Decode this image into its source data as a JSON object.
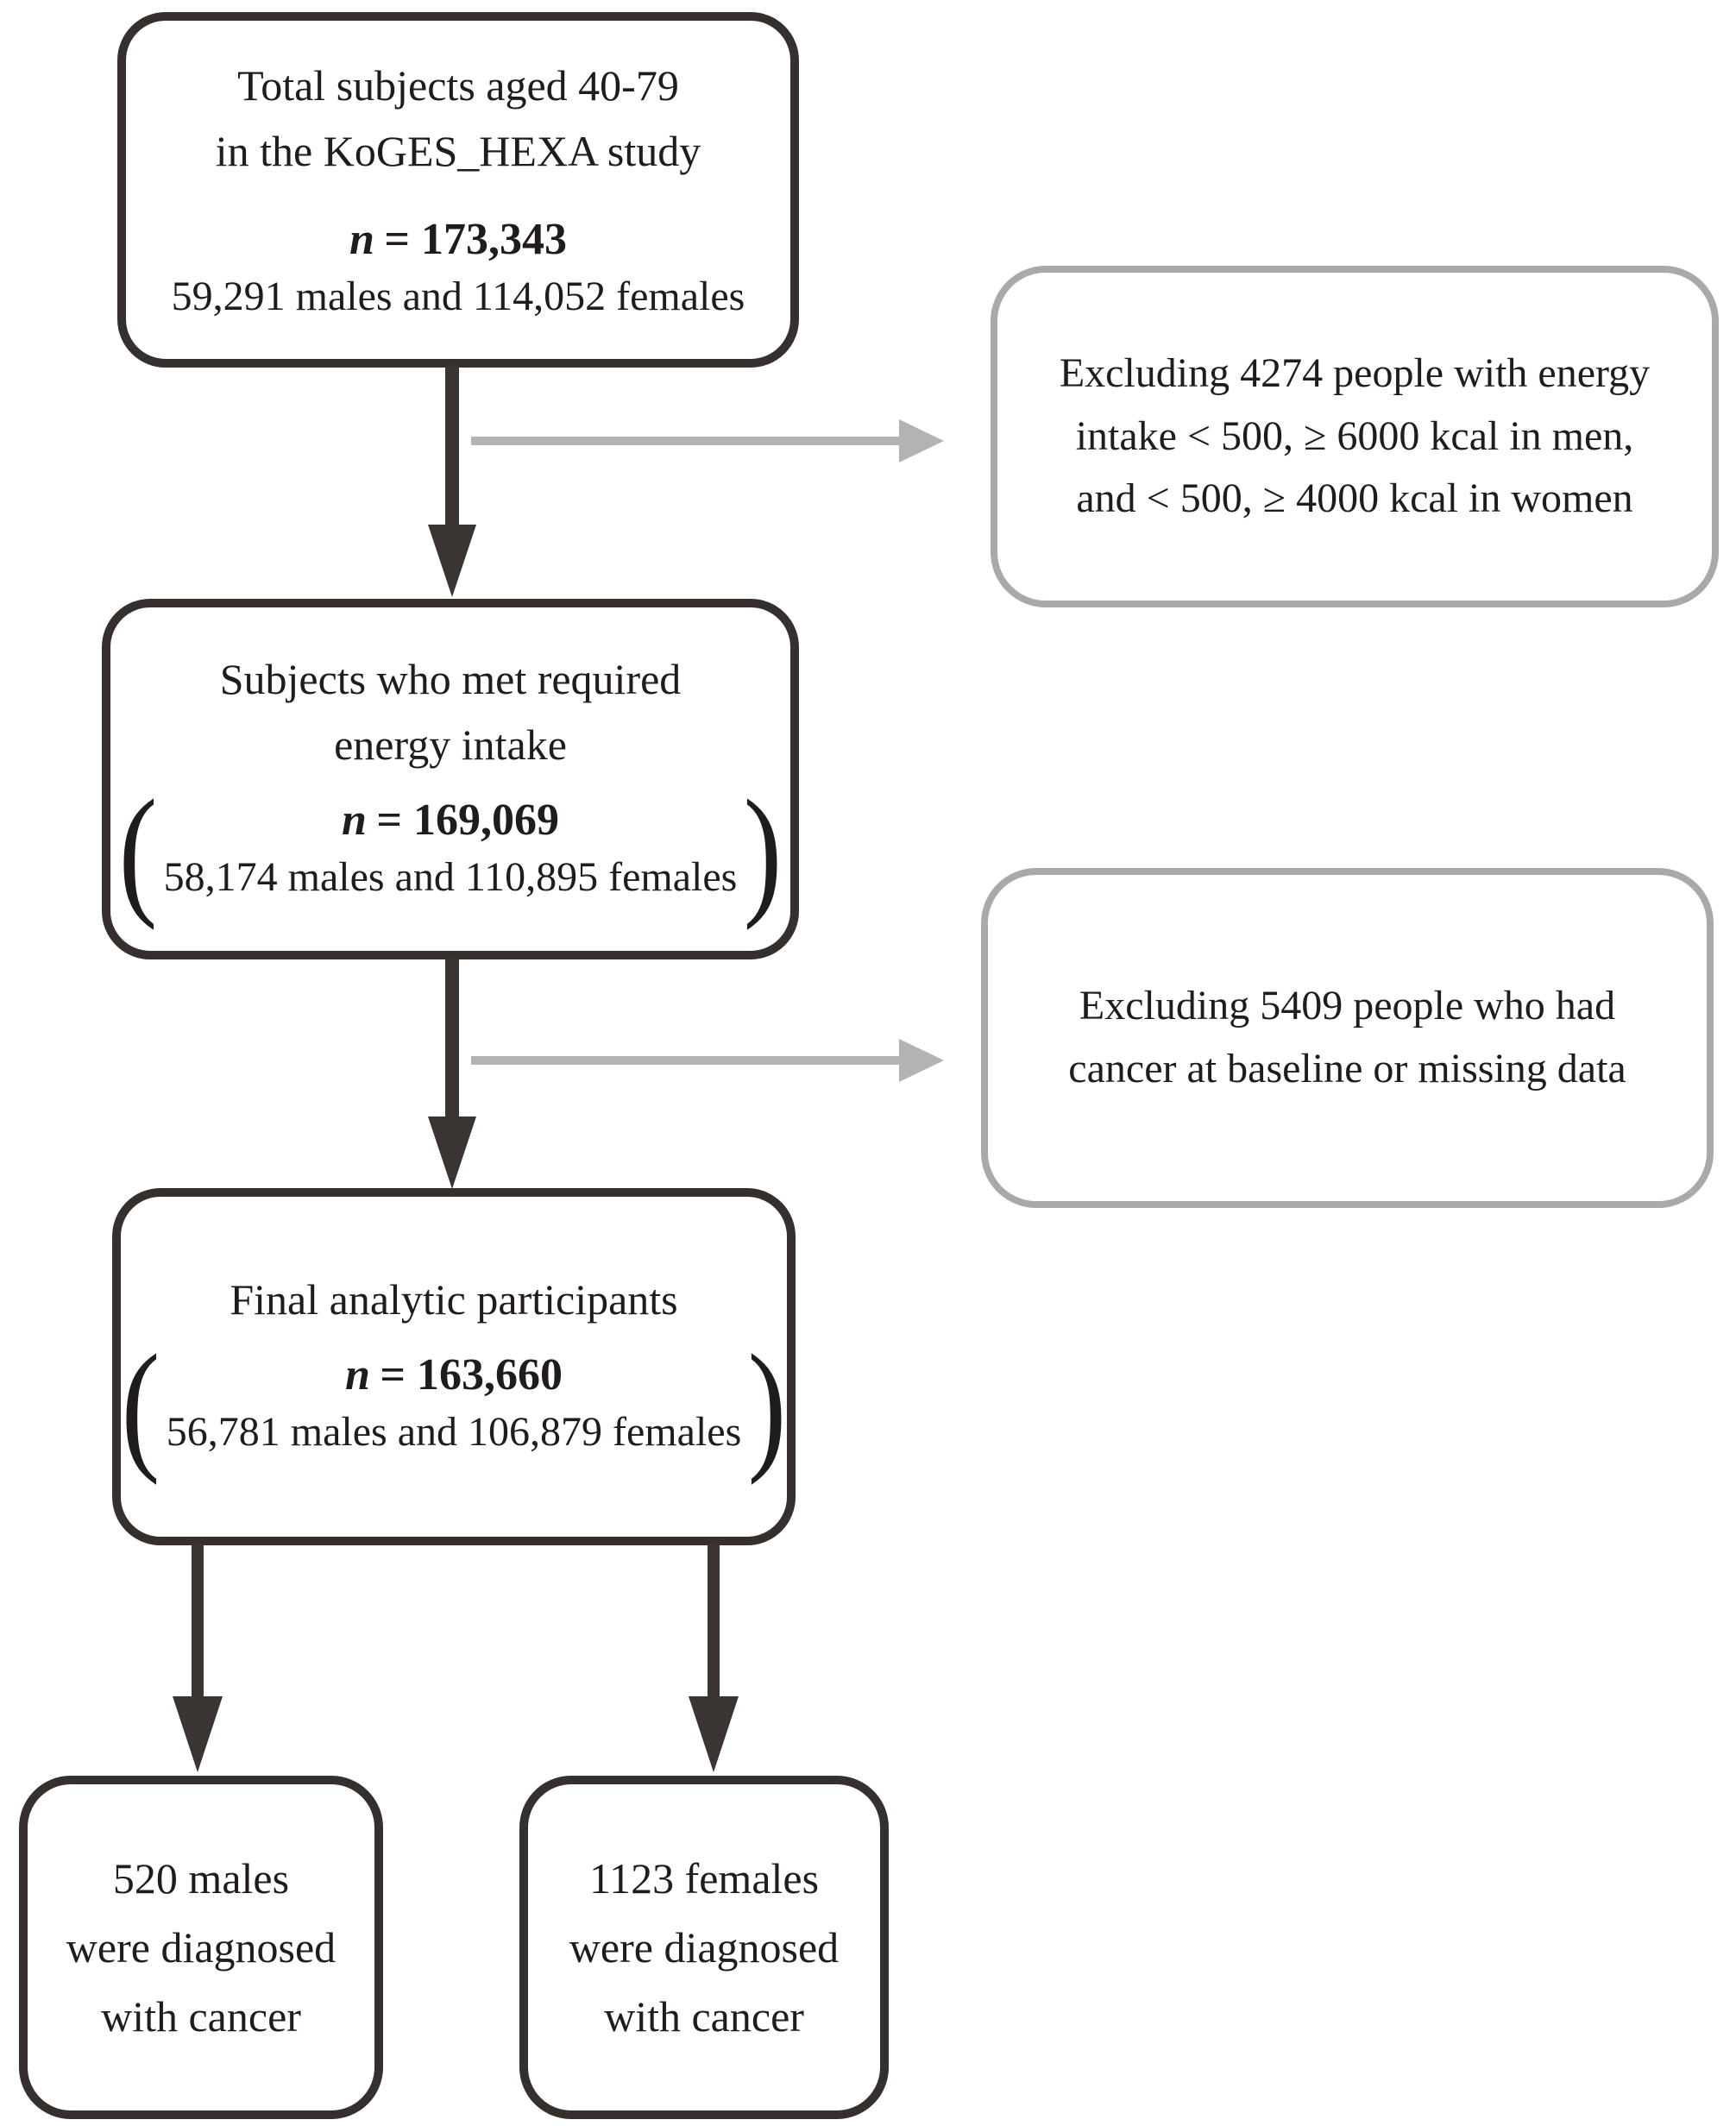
{
  "palette": {
    "background": "#ffffff",
    "box_border_dark": "#352f2e",
    "box_border_gray": "#a9a9a9",
    "arrow_dark": "#3a3433",
    "arrow_gray": "#b3b3b3",
    "text": "#201c1b"
  },
  "flowchart": {
    "box_total": {
      "lines": [
        "Total subjects aged 40-79",
        "in the KoGES_HEXA study"
      ],
      "n_var": "n",
      "n_rest": "= 173,343",
      "detail": "59,291 males and 114,052 females"
    },
    "exclusion1": {
      "lines": [
        "Excluding 4274 people with energy",
        "intake < 500, ≥ 6000 kcal in men,",
        "and < 500, ≥ 4000 kcal in women"
      ]
    },
    "box_energy": {
      "lines": [
        "Subjects who met required",
        "energy intake"
      ],
      "n_var": "n",
      "n_rest": "= 169,069",
      "detail": "58,174 males and 110,895 females",
      "paren_open": "(",
      "paren_close": ")"
    },
    "exclusion2": {
      "lines": [
        "Excluding 5409 people who had",
        "cancer at baseline or missing data"
      ]
    },
    "box_final": {
      "lines": [
        "Final analytic participants"
      ],
      "n_var": "n",
      "n_rest": "= 163,660",
      "detail": "56,781 males and 106,879 females",
      "paren_open": "(",
      "paren_close": ")"
    },
    "box_males": {
      "lines": [
        "520 males",
        "were diagnosed",
        "with cancer"
      ]
    },
    "box_females": {
      "lines": [
        "1123 females",
        "were diagnosed",
        "with cancer"
      ]
    }
  }
}
